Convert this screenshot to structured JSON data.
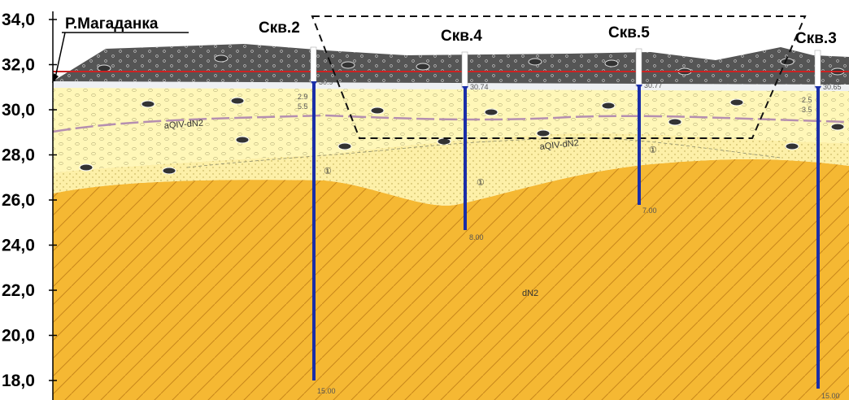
{
  "y_axis": {
    "ticks": [
      "34,0",
      "32,0",
      "30,0",
      "28,0",
      "26,0",
      "24,0",
      "22,0",
      "20,0",
      "18,0"
    ]
  },
  "river": {
    "label": "Р.Магаданка"
  },
  "wells": [
    {
      "id": "well-2",
      "label": "Скв.2",
      "water_level": "30.9",
      "depth_label": "15.00",
      "layer_marks": [
        "2.9",
        "5.5"
      ]
    },
    {
      "id": "well-4",
      "label": "Скв.4",
      "water_level": "30.74",
      "depth_label": "8.00",
      "layer_marks": []
    },
    {
      "id": "well-5",
      "label": "Скв.5",
      "water_level": "30.77",
      "depth_label": "7.00",
      "layer_marks": []
    },
    {
      "id": "well-3",
      "label": "Скв.3",
      "water_level": "30.65",
      "depth_label": "15.00",
      "layer_marks": [
        "2.5",
        "3.5"
      ]
    }
  ],
  "layers": {
    "upper_sand_index": "aQIV-dN2",
    "middle_sand_index": "aQIV-dN2",
    "bedrock_index": "dN2",
    "lens_marker": "①"
  },
  "colors": {
    "fill_layer": "#555555",
    "sand_light": "#fff7b8",
    "sand_dotted": "#fdf0a8",
    "bedrock": "#f5b833",
    "well_line": "#1a2ea8",
    "water_line": "#cc2222",
    "contact_line": "#b58fb0"
  }
}
